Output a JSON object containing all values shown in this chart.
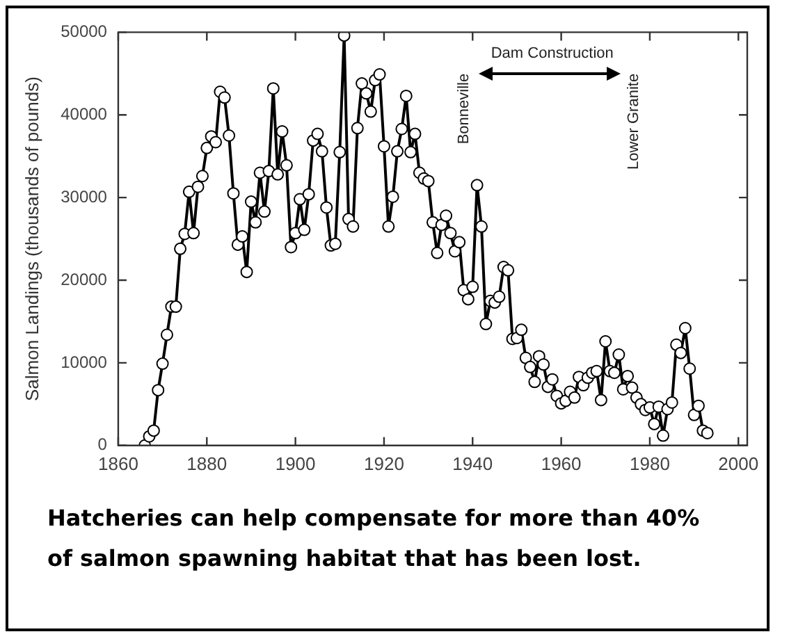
{
  "chart_data": {
    "type": "line",
    "ylabel": "Salmon Landings (thousands of pounds)",
    "xlim": [
      1860,
      2002
    ],
    "xticks": [
      1860,
      1880,
      1900,
      1920,
      1940,
      1960,
      1980,
      2000
    ],
    "ylim": [
      0,
      50000
    ],
    "yticks": [
      0,
      10000,
      20000,
      30000,
      40000,
      50000
    ],
    "marker": "circle",
    "line_style": "solid",
    "grid": false,
    "legend": false,
    "series": [
      {
        "color": "#000000",
        "x": [
          1866,
          1867,
          1868,
          1869,
          1870,
          1871,
          1872,
          1873,
          1874,
          1875,
          1876,
          1877,
          1878,
          1879,
          1880,
          1881,
          1882,
          1883,
          1884,
          1885,
          1886,
          1887,
          1888,
          1889,
          1890,
          1891,
          1892,
          1893,
          1894,
          1895,
          1896,
          1897,
          1898,
          1899,
          1900,
          1901,
          1902,
          1903,
          1904,
          1905,
          1906,
          1907,
          1908,
          1909,
          1910,
          1911,
          1912,
          1913,
          1914,
          1915,
          1916,
          1917,
          1918,
          1919,
          1920,
          1921,
          1922,
          1923,
          1924,
          1925,
          1926,
          1927,
          1928,
          1929,
          1930,
          1931,
          1932,
          1933,
          1934,
          1935,
          1936,
          1937,
          1938,
          1939,
          1940,
          1941,
          1942,
          1943,
          1944,
          1945,
          1946,
          1947,
          1948,
          1949,
          1950,
          1951,
          1952,
          1953,
          1954,
          1955,
          1956,
          1957,
          1958,
          1959,
          1960,
          1961,
          1962,
          1963,
          1964,
          1965,
          1966,
          1967,
          1968,
          1969,
          1970,
          1971,
          1972,
          1973,
          1974,
          1975,
          1976,
          1977,
          1978,
          1979,
          1980,
          1981,
          1982,
          1983,
          1984,
          1985,
          1986,
          1987,
          1988,
          1989,
          1990,
          1991,
          1992,
          1993
        ],
        "values": [
          0,
          1100,
          1800,
          6700,
          9900,
          13400,
          16800,
          16800,
          23800,
          25600,
          30700,
          25700,
          31300,
          32600,
          36000,
          37400,
          36700,
          42800,
          42100,
          37500,
          30500,
          24300,
          25300,
          21000,
          29500,
          27000,
          33000,
          28300,
          33200,
          43200,
          32800,
          38000,
          33900,
          24000,
          25700,
          29800,
          26100,
          30400,
          36900,
          37700,
          35600,
          28800,
          24200,
          24400,
          35500,
          49600,
          27400,
          26500,
          38400,
          43800,
          42600,
          40400,
          44200,
          44900,
          36200,
          26500,
          30100,
          35600,
          38300,
          42300,
          35500,
          37700,
          33000,
          32300,
          32000,
          27000,
          23300,
          26700,
          27800,
          25700,
          23500,
          24600,
          18800,
          17700,
          19200,
          31500,
          26500,
          14700,
          17500,
          17300,
          18000,
          21600,
          21200,
          12900,
          13000,
          14000,
          10600,
          9500,
          7700,
          10800,
          9800,
          7100,
          8000,
          6000,
          5100,
          5400,
          6500,
          5800,
          8300,
          7300,
          8200,
          8800,
          9000,
          5500,
          12600,
          9000,
          8800,
          11000,
          6800,
          8400,
          7000,
          5800,
          5000,
          4300,
          4600,
          2600,
          4700,
          1200,
          4400,
          5200,
          12200,
          11200,
          14200,
          9300,
          3700,
          4800,
          1800,
          1500
        ]
      }
    ],
    "annotations": [
      "Bonneville",
      "Dam Construction",
      "Lower Granite",
      "Hatcheries can help compensate for more than 40% of salmon spawning habitat that has been lost."
    ]
  }
}
